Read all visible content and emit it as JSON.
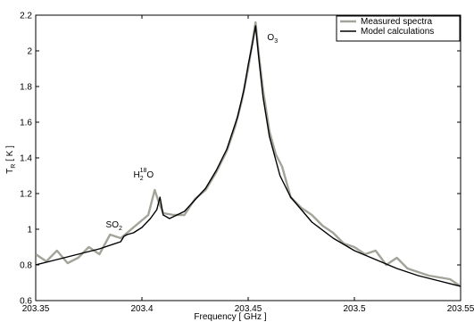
{
  "chart_data": {
    "type": "line",
    "title": "",
    "xlabel": "Frequency   [ GHz ]",
    "ylabel": {
      "main": "T",
      "sub": "R",
      "rest": "  [ K ]"
    },
    "xlim": [
      203.35,
      203.55
    ],
    "ylim": [
      0.6,
      2.2
    ],
    "x_ticks": [
      203.35,
      203.4,
      203.45,
      203.5,
      203.55
    ],
    "x_tick_labels": [
      "203.35",
      "203.4",
      "203.45",
      "203.5",
      "203.55"
    ],
    "y_ticks": [
      0.6,
      0.8,
      1.0,
      1.2,
      1.4,
      1.6,
      1.8,
      2.0,
      2.2
    ],
    "y_tick_labels": [
      "0.6",
      "0.8",
      "1",
      "1.2",
      "1.4",
      "1.6",
      "1.8",
      "2",
      "2.2"
    ],
    "grid": false,
    "legend_position": "top-right",
    "series": [
      {
        "name": "Measured spectra",
        "color": "#a3a39a",
        "x": [
          203.35,
          203.355,
          203.36,
          203.365,
          203.37,
          203.375,
          203.38,
          203.385,
          203.39,
          203.395,
          203.4,
          203.403,
          203.406,
          203.408,
          203.41,
          203.415,
          203.42,
          203.425,
          203.43,
          203.435,
          203.44,
          203.444,
          203.447,
          203.45,
          203.452,
          203.4535,
          203.455,
          203.457,
          203.46,
          203.463,
          203.466,
          203.47,
          203.475,
          203.48,
          203.485,
          203.49,
          203.495,
          203.5,
          203.505,
          203.51,
          203.515,
          203.52,
          203.525,
          203.53,
          203.535,
          203.54,
          203.545,
          203.55
        ],
        "values": [
          0.86,
          0.82,
          0.88,
          0.81,
          0.84,
          0.9,
          0.86,
          0.97,
          0.95,
          1.0,
          1.05,
          1.08,
          1.22,
          1.15,
          1.09,
          1.08,
          1.08,
          1.17,
          1.22,
          1.32,
          1.44,
          1.58,
          1.72,
          1.9,
          2.05,
          2.16,
          1.98,
          1.78,
          1.55,
          1.42,
          1.35,
          1.18,
          1.12,
          1.08,
          1.02,
          0.98,
          0.92,
          0.9,
          0.86,
          0.88,
          0.8,
          0.84,
          0.78,
          0.76,
          0.74,
          0.73,
          0.72,
          0.68
        ]
      },
      {
        "name": "Model calculations",
        "color": "#000000",
        "x": [
          203.35,
          203.36,
          203.37,
          203.38,
          203.39,
          203.3915,
          203.393,
          203.396,
          203.4,
          203.404,
          203.407,
          203.4085,
          203.41,
          203.413,
          203.42,
          203.43,
          203.435,
          203.44,
          203.445,
          203.448,
          203.45,
          203.452,
          203.4535,
          203.455,
          203.457,
          203.46,
          203.465,
          203.47,
          203.48,
          203.49,
          203.5,
          203.51,
          203.52,
          203.53,
          203.54,
          203.55
        ],
        "values": [
          0.8,
          0.83,
          0.86,
          0.89,
          0.93,
          0.96,
          0.97,
          0.98,
          1.01,
          1.06,
          1.11,
          1.18,
          1.08,
          1.06,
          1.1,
          1.23,
          1.33,
          1.45,
          1.63,
          1.78,
          1.92,
          2.04,
          2.14,
          1.96,
          1.74,
          1.52,
          1.3,
          1.18,
          1.04,
          0.95,
          0.88,
          0.83,
          0.78,
          0.74,
          0.71,
          0.68
        ]
      }
    ],
    "annotations": [
      {
        "text": "O",
        "sub": "3",
        "x": 203.459,
        "y": 2.06
      },
      {
        "text": "H",
        "sub": "2",
        "sup": "18",
        "tail": "O",
        "x": 203.396,
        "y": 1.29
      },
      {
        "text": "SO",
        "sub": "2",
        "x": 203.383,
        "y": 1.01
      }
    ]
  }
}
